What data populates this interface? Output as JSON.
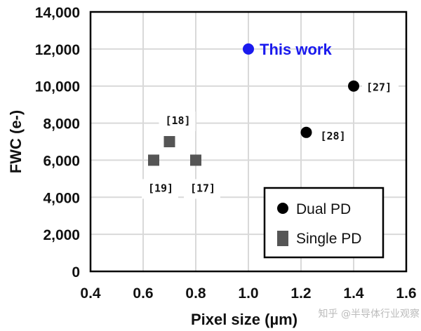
{
  "chart_data": {
    "type": "scatter",
    "title": "",
    "xlabel": "Pixel size (µm)",
    "ylabel": "FWC (e-)",
    "xlim": [
      0.4,
      1.6
    ],
    "ylim": [
      0,
      14000
    ],
    "xticks": [
      0.4,
      0.6,
      0.8,
      1.0,
      1.2,
      1.4,
      1.6
    ],
    "xtick_labels": [
      "0.4",
      "0.6",
      "0.8",
      "1.0",
      "1.2",
      "1.4",
      "1.6"
    ],
    "yticks": [
      0,
      2000,
      4000,
      6000,
      8000,
      10000,
      12000,
      14000
    ],
    "ytick_labels": [
      "0",
      "2,000",
      "4,000",
      "6,000",
      "8,000",
      "10,000",
      "12,000",
      "14,000"
    ],
    "grid": true,
    "legend_position": "bottom-right",
    "series": [
      {
        "name": "This work",
        "marker": "circle",
        "color": "#1a1aee",
        "points": [
          {
            "x": 1.0,
            "y": 12000,
            "label": "This work"
          }
        ]
      },
      {
        "name": "Dual PD",
        "marker": "circle",
        "color": "#000000",
        "points": [
          {
            "x": 1.4,
            "y": 10000,
            "label": "[27]"
          },
          {
            "x": 1.22,
            "y": 7500,
            "label": "[28]"
          }
        ]
      },
      {
        "name": "Single PD",
        "marker": "square",
        "color": "#555555",
        "points": [
          {
            "x": 0.7,
            "y": 7000,
            "label": "[18]"
          },
          {
            "x": 0.64,
            "y": 6000,
            "label": "[19]"
          },
          {
            "x": 0.8,
            "y": 6000,
            "label": "[17]"
          }
        ]
      }
    ],
    "legend": [
      "Dual PD",
      "Single PD"
    ]
  },
  "watermark": "知乎 @半导体行业观察"
}
